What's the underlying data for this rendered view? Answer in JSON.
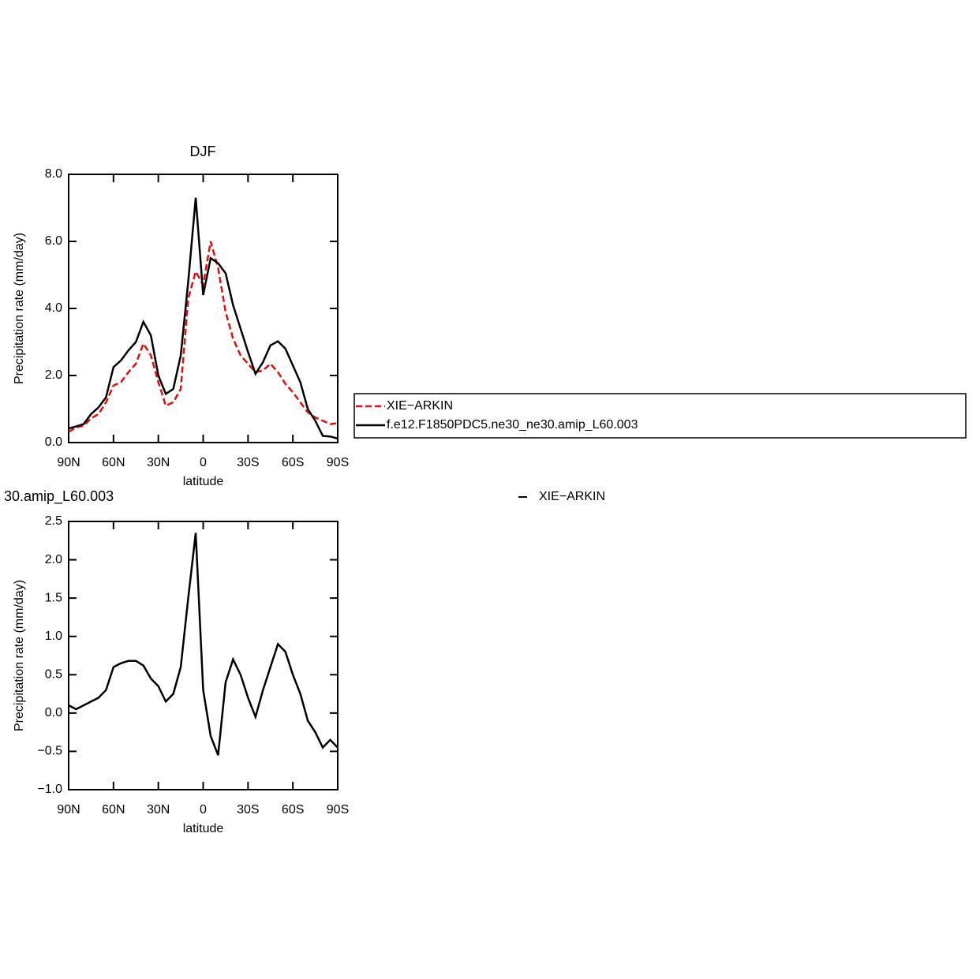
{
  "chart_data": [
    {
      "type": "line",
      "title": "DJF",
      "xlabel": "latitude",
      "ylabel": "Precipitation rate (mm/day)",
      "x": [
        90,
        85,
        80,
        75,
        70,
        65,
        60,
        55,
        50,
        45,
        40,
        35,
        30,
        25,
        20,
        15,
        10,
        5,
        0,
        -5,
        -10,
        -15,
        -20,
        -25,
        -30,
        -35,
        -40,
        -45,
        -50,
        -55,
        -60,
        -65,
        -70,
        -75,
        -80,
        -85,
        -90
      ],
      "series": [
        {
          "name": "XIE−ARKIN",
          "color": "#e01010",
          "style": "dashed",
          "values": [
            0.32,
            0.45,
            0.5,
            0.72,
            0.85,
            1.2,
            1.7,
            1.8,
            2.1,
            2.35,
            2.95,
            2.6,
            1.8,
            1.1,
            1.2,
            1.6,
            4.3,
            5.1,
            4.7,
            6.0,
            5.2,
            3.9,
            3.1,
            2.6,
            2.35,
            2.1,
            2.15,
            2.35,
            2.1,
            1.75,
            1.5,
            1.2,
            0.9,
            0.75,
            0.65,
            0.55,
            0.58
          ]
        },
        {
          "name": "f.e12.F1850PDC5.ne30_ne30.amip_L60.003",
          "color": "#000000",
          "style": "solid",
          "values": [
            0.42,
            0.48,
            0.55,
            0.85,
            1.05,
            1.35,
            2.25,
            2.45,
            2.75,
            3.0,
            3.6,
            3.2,
            2.0,
            1.45,
            1.6,
            2.6,
            4.8,
            7.3,
            4.4,
            5.5,
            5.35,
            5.05,
            4.1,
            3.4,
            2.7,
            2.05,
            2.4,
            2.9,
            3.02,
            2.8,
            2.3,
            1.8,
            1.0,
            0.65,
            0.2,
            0.18,
            0.12
          ]
        }
      ],
      "xlim": [
        90,
        -90
      ],
      "xticks": [
        {
          "value": 90,
          "label": "90N"
        },
        {
          "value": 60,
          "label": "60N"
        },
        {
          "value": 30,
          "label": "30N"
        },
        0,
        {
          "value": -30,
          "label": "30S"
        },
        {
          "value": -60,
          "label": "60S"
        },
        {
          "value": -90,
          "label": "90S"
        }
      ],
      "ylim": [
        0,
        8
      ],
      "yticks": [
        {
          "value": 0,
          "label": "0.0"
        },
        {
          "value": 2,
          "label": "2.0"
        },
        {
          "value": 4,
          "label": "4.0"
        },
        {
          "value": 6,
          "label": "6.0"
        },
        {
          "value": 8,
          "label": "8.0"
        }
      ],
      "legend": "right"
    },
    {
      "type": "line",
      "title": "30.amip_L60.003",
      "xlabel": "latitude",
      "ylabel": "Precipitation rate (mm/day)",
      "annotation": "XIE−ARKIN",
      "x": [
        90,
        85,
        80,
        75,
        70,
        65,
        60,
        55,
        50,
        45,
        40,
        35,
        30,
        25,
        20,
        15,
        10,
        5,
        0,
        -5,
        -10,
        -15,
        -20,
        -25,
        -30,
        -35,
        -40,
        -45,
        -50,
        -55,
        -60,
        -65,
        -70,
        -75,
        -80,
        -85,
        -90
      ],
      "values": [
        0.1,
        0.05,
        0.1,
        0.15,
        0.2,
        0.3,
        0.6,
        0.65,
        0.68,
        0.68,
        0.62,
        0.45,
        0.35,
        0.15,
        0.25,
        0.6,
        1.5,
        2.35,
        0.3,
        -0.3,
        -0.55,
        0.4,
        0.7,
        0.5,
        0.2,
        -0.05,
        0.3,
        0.6,
        0.9,
        0.8,
        0.5,
        0.25,
        -0.1,
        -0.25,
        -0.45,
        -0.35,
        -0.45
      ],
      "color": "#000000",
      "xlim": [
        90,
        -90
      ],
      "xticks": [
        {
          "value": 90,
          "label": "90N"
        },
        {
          "value": 60,
          "label": "60N"
        },
        {
          "value": 30,
          "label": "30N"
        },
        0,
        {
          "value": -30,
          "label": "30S"
        },
        {
          "value": -60,
          "label": "60S"
        },
        {
          "value": -90,
          "label": "90S"
        }
      ],
      "ylim": [
        -1,
        2.5
      ],
      "yticks": [
        {
          "value": -1,
          "label": "−1.0"
        },
        {
          "value": -0.5,
          "label": "−0.5"
        },
        {
          "value": 0,
          "label": "0.0"
        },
        0.5,
        {
          "value": 1,
          "label": "1.0"
        },
        1.5,
        {
          "value": 2,
          "label": "2.0"
        },
        2.5
      ]
    }
  ]
}
